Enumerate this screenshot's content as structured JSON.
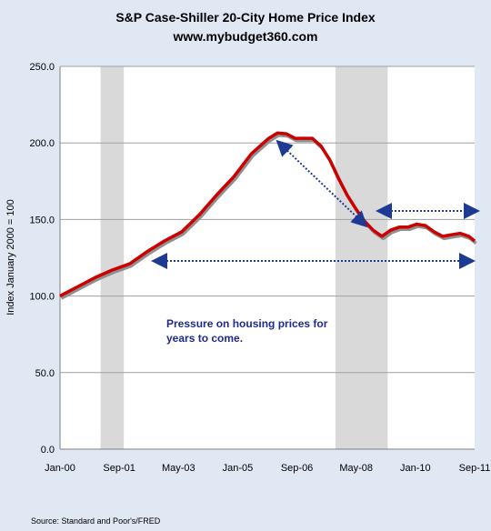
{
  "title": "S&P Case-Shiller 20-City Home Price Index",
  "subtitle": "www.mybudget360.com",
  "source": "Source: Standard and Poor's/FRED",
  "annotation": "Pressure on housing prices for years to come.",
  "colors": {
    "background": "#dfe8f3",
    "plot_background": "#ffffff",
    "line": "#cc0000",
    "recession": "#d9d9d9",
    "arrow": "#1f3a93",
    "annotation_text": "#1f2a8a",
    "gridline": "#a0a0a0"
  },
  "chart_data": {
    "type": "line",
    "title": "S&P Case-Shiller 20-City Home Price Index",
    "subtitle": "www.mybudget360.com",
    "ylabel": "Index January 2000 = 100",
    "xlabel": "",
    "ylim": [
      0,
      250
    ],
    "y_ticks": [
      "0.0",
      "50.0",
      "100.0",
      "150.0",
      "200.0",
      "250.0"
    ],
    "x_ticks": [
      "Jan-00",
      "Sep-01",
      "May-03",
      "Jan-05",
      "Sep-06",
      "May-08",
      "Jan-10",
      "Sep-11"
    ],
    "grid": "horizontal",
    "legend": "none",
    "recession_bands": [
      {
        "start": "2001-03",
        "end": "2001-11"
      },
      {
        "start": "2007-12",
        "end": "2009-06"
      }
    ],
    "series": [
      {
        "x": [
          "2000-01",
          "2000-07",
          "2001-01",
          "2001-07",
          "2002-01",
          "2002-07",
          "2003-01",
          "2003-07",
          "2004-01",
          "2004-07",
          "2005-01",
          "2005-07",
          "2006-01",
          "2006-04",
          "2006-07",
          "2006-10",
          "2007-01",
          "2007-04",
          "2007-07",
          "2007-10",
          "2008-01",
          "2008-04",
          "2008-07",
          "2008-10",
          "2009-01",
          "2009-04",
          "2009-07",
          "2009-10",
          "2010-01",
          "2010-04",
          "2010-07",
          "2010-10",
          "2011-01",
          "2011-04",
          "2011-07",
          "2011-10",
          "2011-12"
        ],
        "values": [
          100,
          106,
          112,
          117,
          121,
          129,
          136,
          142,
          153,
          166,
          178,
          193,
          203,
          206.5,
          206,
          203,
          203,
          203,
          198,
          189,
          177,
          166,
          157,
          149,
          143,
          139,
          143,
          145,
          145,
          147,
          146,
          142,
          139,
          140,
          141,
          139,
          136
        ]
      }
    ]
  }
}
